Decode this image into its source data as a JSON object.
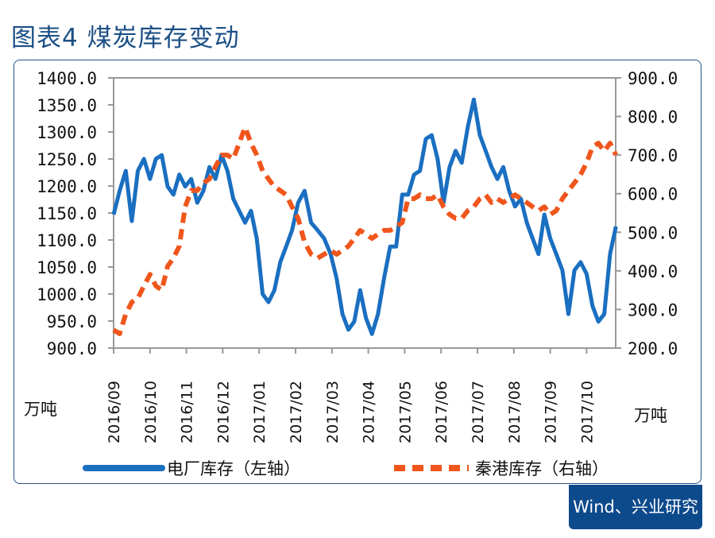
{
  "title": "图表4 煤炭库存变动",
  "source": "Wind、兴业研究",
  "chart_data": {
    "type": "line",
    "title": "图表4 煤炭库存变动",
    "y_left": {
      "ticks": [
        "1400.0",
        "1350.0",
        "1300.0",
        "1250.0",
        "1200.0",
        "1150.0",
        "1100.0",
        "1050.0",
        "1000.0",
        "950.0",
        "900.0"
      ],
      "range": [
        900,
        1400
      ],
      "unit": "万吨"
    },
    "y_right": {
      "ticks": [
        "900.0",
        "800.0",
        "700.0",
        "600.0",
        "500.0",
        "400.0",
        "300.0",
        "200.0"
      ],
      "range": [
        200,
        900
      ],
      "unit": "万吨"
    },
    "x_ticks": [
      "2016/09",
      "2016/10",
      "2016/11",
      "2016/12",
      "2017/01",
      "2017/02",
      "2017/03",
      "2017/04",
      "2017/05",
      "2017/06",
      "2017/07",
      "2017/08",
      "2017/09",
      "2017/10"
    ],
    "grid": false,
    "legend_placement": "bottom",
    "dates": [
      "2016-09-01",
      "2016-09-06",
      "2016-09-11",
      "2016-09-16",
      "2016-09-21",
      "2016-09-26",
      "2016-10-01",
      "2016-10-06",
      "2016-10-11",
      "2016-10-16",
      "2016-10-21",
      "2016-10-26",
      "2016-10-31",
      "2016-11-05",
      "2016-11-10",
      "2016-11-15",
      "2016-11-20",
      "2016-11-25",
      "2016-11-30",
      "2016-12-05",
      "2016-12-10",
      "2016-12-15",
      "2016-12-20",
      "2016-12-25",
      "2016-12-30",
      "2017-01-04",
      "2017-01-09",
      "2017-01-14",
      "2017-01-19",
      "2017-01-24",
      "2017-01-29",
      "2017-02-03",
      "2017-02-08",
      "2017-02-13",
      "2017-02-18",
      "2017-02-23",
      "2017-02-28",
      "2017-03-05",
      "2017-03-10",
      "2017-03-15",
      "2017-03-20",
      "2017-03-25",
      "2017-03-30",
      "2017-04-04",
      "2017-04-09",
      "2017-04-14",
      "2017-04-19",
      "2017-04-24",
      "2017-04-29",
      "2017-05-04",
      "2017-05-09",
      "2017-05-14",
      "2017-05-19",
      "2017-05-24",
      "2017-05-29",
      "2017-06-03",
      "2017-06-08",
      "2017-06-13",
      "2017-06-18",
      "2017-06-23",
      "2017-06-28",
      "2017-07-03",
      "2017-07-08",
      "2017-07-13",
      "2017-07-18",
      "2017-07-23",
      "2017-07-28",
      "2017-08-02",
      "2017-08-07",
      "2017-08-12",
      "2017-08-17",
      "2017-08-22",
      "2017-08-27",
      "2017-09-01",
      "2017-09-06",
      "2017-09-11",
      "2017-09-16",
      "2017-09-21",
      "2017-09-26",
      "2017-10-01",
      "2017-10-06",
      "2017-10-11",
      "2017-10-16",
      "2017-10-21",
      "2017-10-26"
    ],
    "series": [
      {
        "name": "电厂库存（左轴）",
        "axis": "left",
        "color": "#1a6fc0",
        "style": "solid",
        "values": [
          1147,
          1191,
          1228,
          1135,
          1228,
          1250,
          1213,
          1250,
          1257,
          1199,
          1184,
          1221,
          1199,
          1213,
          1169,
          1191,
          1235,
          1213,
          1257,
          1228,
          1176,
          1154,
          1132,
          1154,
          1103,
          1000,
          985,
          1007,
          1059,
          1088,
          1118,
          1169,
          1191,
          1132,
          1118,
          1103,
          1074,
          1029,
          963,
          934,
          949,
          1007,
          956,
          926,
          963,
          1029,
          1088,
          1088,
          1184,
          1184,
          1221,
          1228,
          1287,
          1294,
          1250,
          1169,
          1235,
          1265,
          1243,
          1309,
          1360,
          1294,
          1265,
          1235,
          1213,
          1235,
          1191,
          1162,
          1176,
          1132,
          1103,
          1074,
          1147,
          1103,
          1074,
          1044,
          963,
          1044,
          1059,
          1037,
          978,
          949,
          963,
          1074,
          1125
        ]
      },
      {
        "name": "秦港库存（右轴）",
        "axis": "right",
        "color": "#f0561c",
        "style": "dashed",
        "values": [
          247,
          237,
          288,
          319,
          329,
          361,
          391,
          361,
          350,
          412,
          433,
          464,
          566,
          608,
          608,
          628,
          638,
          670,
          700,
          700,
          690,
          731,
          772,
          731,
          700,
          659,
          638,
          618,
          608,
          597,
          566,
          536,
          474,
          443,
          433,
          443,
          453,
          443,
          453,
          464,
          484,
          505,
          495,
          484,
          495,
          505,
          505,
          515,
          525,
          587,
          587,
          597,
          587,
          587,
          597,
          566,
          546,
          536,
          536,
          556,
          566,
          587,
          597,
          577,
          587,
          577,
          587,
          597,
          587,
          577,
          566,
          556,
          566,
          546,
          556,
          587,
          608,
          628,
          649,
          680,
          721,
          731,
          710,
          731,
          700
        ]
      }
    ]
  }
}
